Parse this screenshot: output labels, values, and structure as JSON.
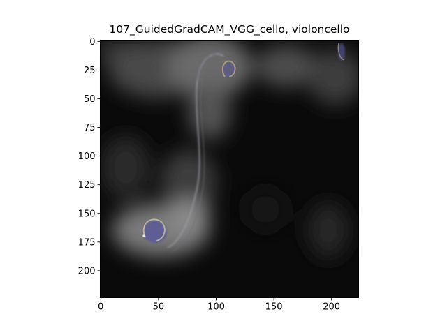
{
  "figure": {
    "title": "107_GuidedGradCAM_VGG_cello, violoncello",
    "x_axis": {
      "range": [
        0,
        224
      ],
      "tick_values": [
        0,
        50,
        100,
        150,
        200
      ],
      "tick_labels": [
        "0",
        "50",
        "100",
        "150",
        "200"
      ]
    },
    "y_axis": {
      "range": [
        0,
        224
      ],
      "inverted": true,
      "tick_values": [
        0,
        25,
        50,
        75,
        100,
        125,
        150,
        175,
        200
      ],
      "tick_labels": [
        "0",
        "25",
        "50",
        "75",
        "100",
        "125",
        "150",
        "175",
        "200"
      ]
    },
    "image": {
      "content": "guided grad-cam saliency heatmap of a cello (f-hole scrolls)",
      "colors": {
        "background": "#0a0a0a",
        "glow": "#bdbdbd",
        "scroll": "#7a7ac8",
        "edge": "#9a9aa4"
      }
    }
  }
}
